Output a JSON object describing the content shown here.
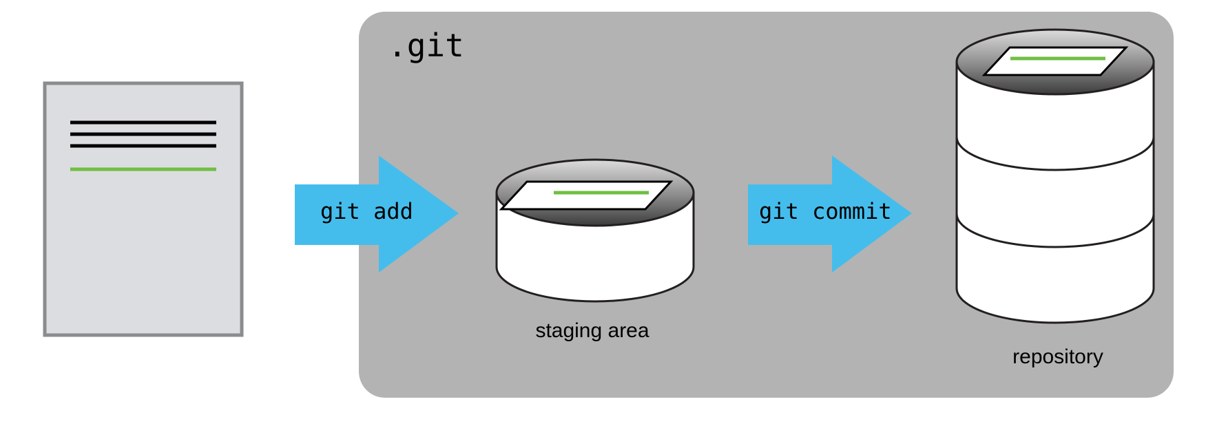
{
  "git_dir": {
    "label": ".git"
  },
  "arrows": {
    "add": {
      "label": "git add"
    },
    "commit": {
      "label": "git commit"
    }
  },
  "staging": {
    "label": "staging area"
  },
  "repository": {
    "label": "repository"
  },
  "colors": {
    "git_box": "#b3b3b3",
    "arrow": "#45bdec",
    "document_fill": "#dcdde0",
    "document_border": "#8a8c8e",
    "changed_line": "#70bf44",
    "text_line": "#000000",
    "cylinder_fill": "#ffffff",
    "stroke": "#231f20"
  },
  "icons": {
    "working_file": "document-icon",
    "staging": "cylinder-icon",
    "repository": "stacked-cylinder-icon"
  }
}
